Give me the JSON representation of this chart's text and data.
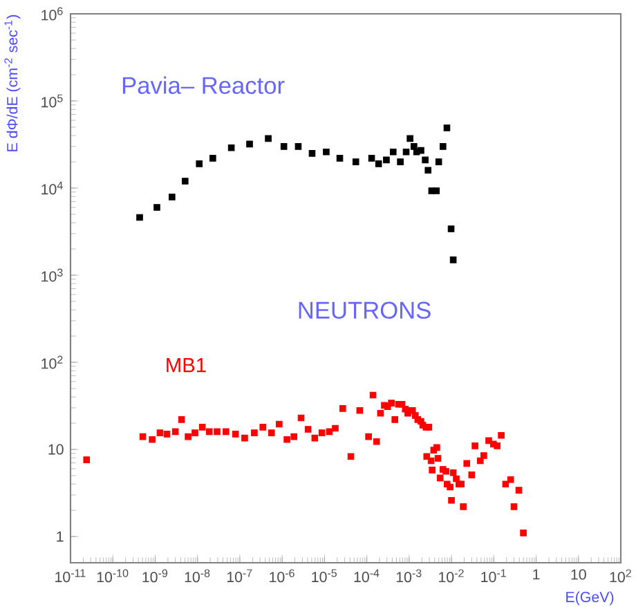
{
  "chart_data": {
    "type": "scatter",
    "xlabel": "E(GeV)",
    "ylabel": "E dΦ/dE (cm$^{-2}$ sec$^{-1}$)",
    "annotations": [
      "Pavia– Reactor",
      "NEUTRONS"
    ],
    "log": "xy",
    "marker": "square",
    "xlim": [
      1e-11,
      100
    ],
    "ylim": [
      0.5,
      1000000
    ],
    "xticks": [
      {
        "value": 1e-11,
        "label": "10$^{-11}$"
      },
      {
        "value": 1e-10,
        "label": "10$^{-10}$"
      },
      {
        "value": 1e-09,
        "label": "10$^{-9}$"
      },
      {
        "value": 1e-08,
        "label": "10$^{-8}$"
      },
      {
        "value": 1e-07,
        "label": "10$^{-7}$"
      },
      {
        "value": 1e-06,
        "label": "10$^{-6}$"
      },
      {
        "value": 1e-05,
        "label": "10$^{-5}$"
      },
      {
        "value": 0.0001,
        "label": "10$^{-4}$"
      },
      {
        "value": 0.001,
        "label": "10$^{-3}$"
      },
      {
        "value": 0.01,
        "label": "10$^{-2}$"
      },
      {
        "value": 0.1,
        "label": "10$^{-1}$"
      },
      1,
      10,
      {
        "value": 100,
        "label": "10$^{2}$"
      }
    ],
    "yticks": [
      1,
      10,
      {
        "value": 100,
        "label": "10$^{2}$"
      },
      {
        "value": 1000,
        "label": "10$^{3}$"
      },
      {
        "value": 10000,
        "label": "10$^{4}$"
      },
      {
        "value": 100000,
        "label": "10$^{5}$"
      },
      {
        "value": 1000000,
        "label": "10$^{6}$"
      }
    ],
    "series": [
      {
        "color": "#000000",
        "x": [
          4.3e-10,
          1.1e-09,
          2.5e-09,
          5.1e-09,
          1.1e-08,
          2.3e-08,
          6.3e-08,
          1.7e-07,
          4.7e-07,
          1.1e-06,
          2.4e-06,
          5.1e-06,
          1.1e-05,
          2.3e-05,
          5.5e-05,
          0.00013,
          0.00019,
          0.00029,
          0.00042,
          0.00062,
          0.00085,
          0.00105,
          0.0013,
          0.0015,
          0.0019,
          0.0024,
          0.0028,
          0.0034,
          0.0044,
          0.005,
          0.0063,
          0.0078,
          0.0098,
          0.011
        ],
        "values": [
          4600,
          6000,
          7900,
          12000,
          19000,
          22000,
          29000,
          32000,
          37000,
          30000,
          30000,
          25000,
          26000,
          22000,
          20000,
          22000,
          19000,
          21000,
          26000,
          20000,
          26000,
          37000,
          30000,
          26000,
          27000,
          21000,
          16000,
          9300,
          9300,
          20000,
          30000,
          49000,
          3400,
          1500
        ]
      },
      {
        "name": "MB1",
        "color": "#ff0000",
        "x": [
          2.4e-11,
          5.1e-10,
          8.5e-10,
          1.3e-09,
          1.9e-09,
          3e-09,
          4.2e-09,
          6e-09,
          8.7e-09,
          1.3e-08,
          1.9e-08,
          2.9e-08,
          4.7e-08,
          7.9e-08,
          1.3e-07,
          2.2e-07,
          3.5e-07,
          5.6e-07,
          8.5e-07,
          1.3e-06,
          1.9e-06,
          2.8e-06,
          4.1e-06,
          5.9e-06,
          8.7e-06,
          1.3e-05,
          1.8e-05,
          2.7e-05,
          4.2e-05,
          6.8e-05,
          0.00011,
          0.00014,
          0.00017,
          0.00021,
          0.00026,
          0.00031,
          0.00038,
          0.00046,
          0.00056,
          0.00068,
          0.00081,
          0.00093,
          0.00107,
          0.0012,
          0.0014,
          0.0016,
          0.0019,
          0.0021,
          0.0025,
          0.0029,
          0.0026,
          0.0033,
          0.0038,
          0.0045,
          0.0048,
          0.0035,
          0.0054,
          0.0063,
          0.0074,
          0.0079,
          0.0093,
          0.01,
          0.011,
          0.013,
          0.015,
          0.017,
          0.019,
          0.023,
          0.03,
          0.036,
          0.048,
          0.058,
          0.076,
          0.098,
          0.12,
          0.15,
          0.19,
          0.25,
          0.3,
          0.39,
          0.5
        ],
        "values": [
          7.6,
          14,
          13,
          15.5,
          15,
          16,
          22,
          14,
          15.5,
          18,
          16,
          16,
          16,
          15,
          13.5,
          15.5,
          18,
          15.5,
          19.5,
          13,
          14,
          23,
          17,
          13.5,
          15.5,
          16,
          17.5,
          29.5,
          8.3,
          28,
          14,
          42,
          12.3,
          26,
          32,
          31,
          34,
          22,
          33,
          33,
          29,
          26,
          28,
          28,
          24.5,
          22,
          21,
          19,
          18,
          18,
          8.3,
          7.4,
          9.8,
          10.5,
          7.9,
          5.8,
          4.7,
          5.9,
          5.6,
          4.0,
          3.7,
          2.6,
          5.4,
          4.6,
          4.0,
          4.0,
          2.2,
          6.9,
          5.1,
          11,
          7.4,
          8.5,
          12.6,
          11.5,
          11,
          14.5,
          4.0,
          4.5,
          2.2,
          3.4,
          1.1
        ]
      }
    ]
  }
}
